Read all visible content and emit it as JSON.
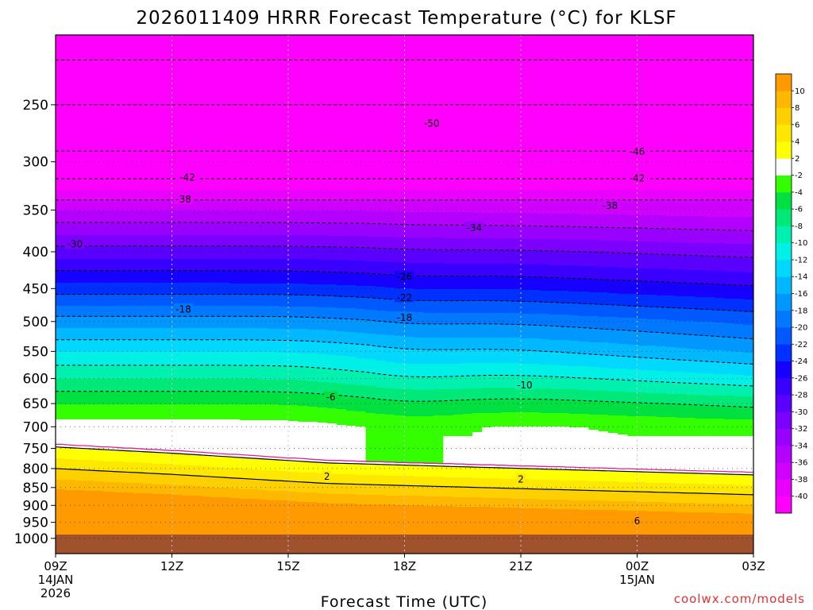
{
  "chart_data": {
    "type": "heatmap",
    "title": "2026011409 HRRR Forecast Temperature (°C) for KLSF",
    "xlabel": "Forecast Time (UTC)",
    "ylabel": "",
    "credit": "coolwx.com/models",
    "credit_color": "#e03030",
    "y_axis": {
      "scale": "pressure",
      "ylim": [
        1050,
        200
      ],
      "ticks": [
        250,
        300,
        350,
        400,
        450,
        500,
        550,
        600,
        650,
        700,
        750,
        800,
        850,
        900,
        950,
        1000
      ]
    },
    "x_axis": {
      "xlim": [
        0,
        18
      ],
      "ticks": [
        {
          "hours": 0,
          "label": "09Z",
          "sub1": "14JAN",
          "sub2": "2026"
        },
        {
          "hours": 3,
          "label": "12Z"
        },
        {
          "hours": 6,
          "label": "15Z"
        },
        {
          "hours": 9,
          "label": "18Z"
        },
        {
          "hours": 12,
          "label": "21Z"
        },
        {
          "hours": 15,
          "label": "00Z",
          "sub1": "15JAN"
        },
        {
          "hours": 18,
          "label": "03Z"
        }
      ]
    },
    "colorbar": {
      "levels": [
        -40,
        -38,
        -36,
        -34,
        -32,
        -30,
        -28,
        -26,
        -24,
        -22,
        -20,
        -18,
        -16,
        -14,
        -12,
        -10,
        -8,
        -6,
        -4,
        -2,
        2,
        4,
        6,
        8,
        10
      ],
      "colors": [
        "#ff00ff",
        "#ea00ff",
        "#d000ff",
        "#b400ff",
        "#9800ff",
        "#7c00ff",
        "#5a00ff",
        "#3a00ff",
        "#1600ff",
        "#0030ff",
        "#0058ff",
        "#0078ff",
        "#0098ff",
        "#00b8ff",
        "#00d8ff",
        "#00f0e8",
        "#00f0b0",
        "#00e878",
        "#00e040",
        "#33ff00",
        "#ffffff",
        "#ffff00",
        "#ffe800",
        "#ffd000",
        "#ffb800",
        "#ff9a00"
      ]
    },
    "contour_labels": [
      {
        "value": "-50",
        "hours": 9.7,
        "p": 265
      },
      {
        "value": "-46",
        "hours": 15.0,
        "p": 290
      },
      {
        "value": "-42",
        "hours": 3.4,
        "p": 315
      },
      {
        "value": "-42",
        "hours": 15.0,
        "p": 316
      },
      {
        "value": "-38",
        "hours": 3.3,
        "p": 338
      },
      {
        "value": "-38",
        "hours": 14.3,
        "p": 345
      },
      {
        "value": "-34",
        "hours": 10.8,
        "p": 370
      },
      {
        "value": "-30",
        "hours": 0.5,
        "p": 390
      },
      {
        "value": "-26",
        "hours": 9.0,
        "p": 433
      },
      {
        "value": "-22",
        "hours": 9.0,
        "p": 463
      },
      {
        "value": "-18",
        "hours": 3.3,
        "p": 480
      },
      {
        "value": "-18",
        "hours": 9.0,
        "p": 493
      },
      {
        "value": "-10",
        "hours": 12.1,
        "p": 612
      },
      {
        "value": "-6",
        "hours": 7.1,
        "p": 636
      },
      {
        "value": "2",
        "hours": 7.0,
        "p": 820
      },
      {
        "value": "2",
        "hours": 12.0,
        "p": 827
      },
      {
        "value": "6",
        "hours": 15.0,
        "p": 945
      }
    ]
  }
}
